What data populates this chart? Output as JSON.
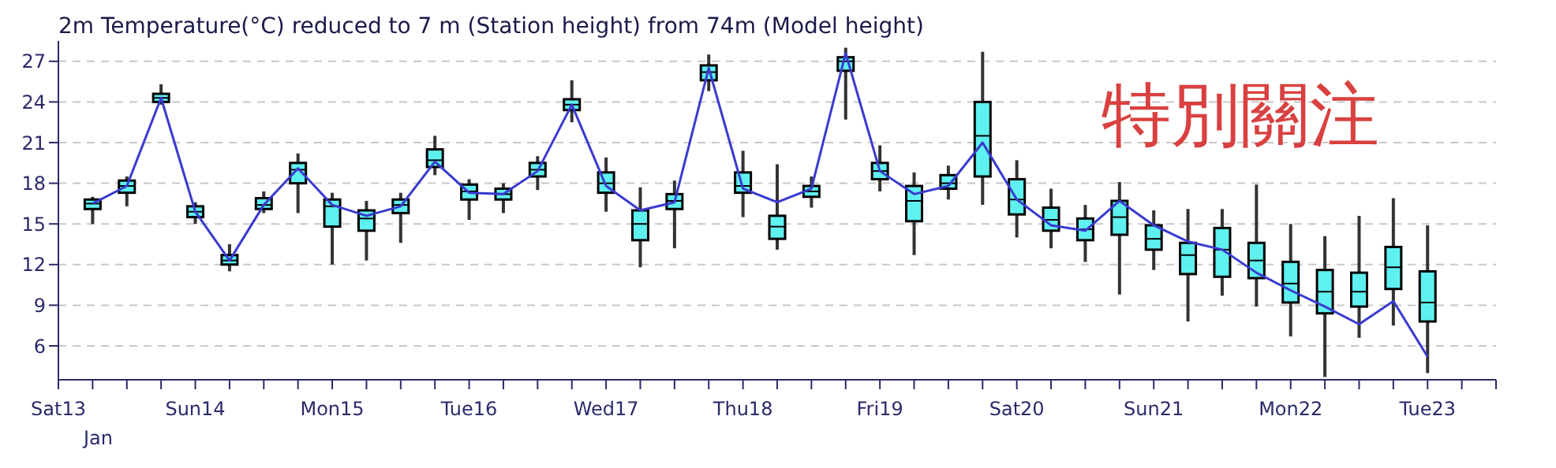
{
  "chart_data": {
    "type": "box",
    "title": "2m Temperature(°C) reduced to 7 m (Station height) from 74m (Model height)",
    "categories": [
      "Sat13",
      null,
      null,
      null,
      "Sun14",
      null,
      null,
      null,
      "Mon15",
      null,
      null,
      null,
      "Tue16",
      null,
      null,
      null,
      "Wed17",
      null,
      null,
      null,
      "Thu18",
      null,
      null,
      null,
      "Fri19",
      null,
      null,
      null,
      "Sat20",
      null,
      null,
      null,
      "Sun21",
      null,
      null,
      null,
      "Mon22",
      null,
      null,
      null,
      "Tue23",
      null,
      null
    ],
    "series": [
      {
        "color": "#5ff0f0",
        "boxes": [
          null,
          {
            "low": 15.0,
            "q1": 16.1,
            "median": 16.5,
            "q3": 16.8,
            "high": 17.0
          },
          {
            "low": 16.3,
            "q1": 17.3,
            "median": 17.8,
            "q3": 18.2,
            "high": 18.5
          },
          {
            "low": 23.8,
            "q1": 24.0,
            "median": 24.3,
            "q3": 24.6,
            "high": 25.3
          },
          {
            "low": 15.0,
            "q1": 15.5,
            "median": 15.9,
            "q3": 16.3,
            "high": 16.6
          },
          {
            "low": 11.5,
            "q1": 12.0,
            "median": 12.3,
            "q3": 12.7,
            "high": 13.5
          },
          {
            "low": 15.8,
            "q1": 16.1,
            "median": 16.4,
            "q3": 16.9,
            "high": 17.4
          },
          {
            "low": 15.8,
            "q1": 18.0,
            "median": 19.0,
            "q3": 19.5,
            "high": 20.2
          },
          {
            "low": 12.0,
            "q1": 14.8,
            "median": 16.3,
            "q3": 16.8,
            "high": 17.3
          },
          {
            "low": 12.3,
            "q1": 14.5,
            "median": 15.4,
            "q3": 16.0,
            "high": 16.7
          },
          {
            "low": 13.6,
            "q1": 15.8,
            "median": 16.4,
            "q3": 16.8,
            "high": 17.3
          },
          {
            "low": 18.6,
            "q1": 19.2,
            "median": 19.7,
            "q3": 20.5,
            "high": 21.5
          },
          {
            "low": 15.3,
            "q1": 16.8,
            "median": 17.4,
            "q3": 17.9,
            "high": 18.3
          },
          {
            "low": 15.8,
            "q1": 16.8,
            "median": 17.2,
            "q3": 17.6,
            "high": 18.0
          },
          {
            "low": 17.5,
            "q1": 18.5,
            "median": 19.0,
            "q3": 19.5,
            "high": 20.0
          },
          {
            "low": 22.5,
            "q1": 23.4,
            "median": 23.8,
            "q3": 24.2,
            "high": 25.6
          },
          {
            "low": 15.9,
            "q1": 17.3,
            "median": 18.0,
            "q3": 18.8,
            "high": 19.9
          },
          {
            "low": 11.8,
            "q1": 13.8,
            "median": 15.0,
            "q3": 16.0,
            "high": 17.7
          },
          {
            "low": 13.2,
            "q1": 16.1,
            "median": 16.7,
            "q3": 17.2,
            "high": 18.2
          },
          {
            "low": 24.8,
            "q1": 25.6,
            "median": 26.2,
            "q3": 26.7,
            "high": 27.5
          },
          {
            "low": 15.5,
            "q1": 17.3,
            "median": 17.8,
            "q3": 18.8,
            "high": 20.4
          },
          {
            "low": 13.1,
            "q1": 13.9,
            "median": 14.8,
            "q3": 15.6,
            "high": 19.4
          },
          {
            "low": 16.2,
            "q1": 17.0,
            "median": 17.4,
            "q3": 17.8,
            "high": 18.5
          },
          {
            "low": 22.7,
            "q1": 26.3,
            "median": 27.0,
            "q3": 27.3,
            "high": 28.0
          },
          {
            "low": 17.4,
            "q1": 18.3,
            "median": 18.9,
            "q3": 19.5,
            "high": 20.8
          },
          {
            "low": 12.7,
            "q1": 15.2,
            "median": 16.7,
            "q3": 17.8,
            "high": 18.8
          },
          {
            "low": 16.8,
            "q1": 17.6,
            "median": 18.0,
            "q3": 18.6,
            "high": 19.3
          },
          {
            "low": 16.4,
            "q1": 18.5,
            "median": 21.5,
            "q3": 24.0,
            "high": 27.7
          },
          {
            "low": 14.0,
            "q1": 15.7,
            "median": 16.8,
            "q3": 18.3,
            "high": 19.7
          },
          {
            "low": 13.2,
            "q1": 14.5,
            "median": 15.3,
            "q3": 16.2,
            "high": 17.6
          },
          {
            "low": 12.2,
            "q1": 13.8,
            "median": 14.6,
            "q3": 15.4,
            "high": 16.4
          },
          {
            "low": 9.8,
            "q1": 14.2,
            "median": 15.5,
            "q3": 16.7,
            "high": 18.1
          },
          {
            "low": 11.6,
            "q1": 13.1,
            "median": 13.9,
            "q3": 14.9,
            "high": 16.0
          },
          {
            "low": 7.8,
            "q1": 11.3,
            "median": 12.7,
            "q3": 13.6,
            "high": 16.1
          },
          {
            "low": 9.7,
            "q1": 11.1,
            "median": 13.1,
            "q3": 14.7,
            "high": 16.1
          },
          {
            "low": 8.9,
            "q1": 11.0,
            "median": 12.3,
            "q3": 13.6,
            "high": 17.9
          },
          {
            "low": 6.7,
            "q1": 9.2,
            "median": 10.6,
            "q3": 12.2,
            "high": 15.0
          },
          {
            "low": 3.7,
            "q1": 8.4,
            "median": 10.0,
            "q3": 11.6,
            "high": 14.1
          },
          {
            "low": 6.6,
            "q1": 8.9,
            "median": 10.0,
            "q3": 11.4,
            "high": 15.6
          },
          {
            "low": 7.5,
            "q1": 10.2,
            "median": 11.8,
            "q3": 13.3,
            "high": 16.9
          },
          {
            "low": 4.0,
            "q1": 7.8,
            "median": 9.2,
            "q3": 11.5,
            "high": 14.9
          },
          null,
          null
        ]
      },
      {
        "type": "line",
        "color": "#3a3ad0",
        "values": [
          null,
          16.5,
          17.8,
          24.3,
          15.9,
          12.3,
          16.4,
          19.1,
          16.4,
          15.6,
          16.3,
          19.6,
          17.3,
          17.2,
          18.9,
          23.8,
          17.8,
          16.0,
          16.6,
          26.5,
          17.6,
          16.6,
          17.6,
          27.6,
          18.9,
          17.2,
          17.8,
          21.0,
          16.8,
          14.9,
          14.5,
          16.7,
          14.9,
          13.7,
          13.1,
          11.4,
          10.1,
          8.9,
          7.6,
          9.3,
          5.2,
          null,
          null
        ]
      }
    ],
    "ylim": [
      3.5,
      28.5
    ],
    "yticks": [
      6,
      9,
      12,
      15,
      18,
      21,
      24,
      27
    ],
    "grid": "y",
    "marker": "none",
    "annotations": [
      "特別關注",
      "Jan"
    ]
  }
}
